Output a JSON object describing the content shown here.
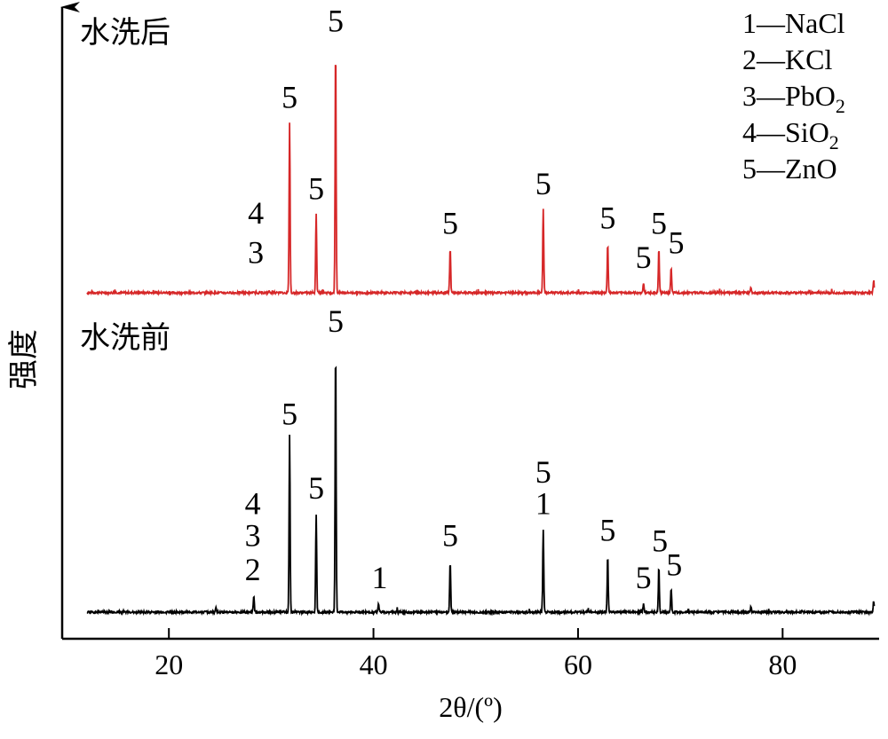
{
  "chart_data": {
    "type": "line",
    "xlabel": "2θ/(º)",
    "ylabel": "强度",
    "xlim": [
      10,
      89
    ],
    "xticks": [
      20,
      40,
      60,
      80
    ],
    "legend": {
      "placement": "top-right",
      "entries": [
        {
          "num": "1",
          "text": "NaCl"
        },
        {
          "num": "2",
          "text": "KCl"
        },
        {
          "num": "3",
          "text": "PbO",
          "sub": "2"
        },
        {
          "num": "4",
          "text": "SiO",
          "sub": "2"
        },
        {
          "num": "5",
          "text": "ZnO"
        }
      ]
    },
    "series": [
      {
        "name": "水洗后",
        "color": "#d62728",
        "peaks": [
          {
            "x": 31.8,
            "h": 0.69
          },
          {
            "x": 34.4,
            "h": 0.32
          },
          {
            "x": 36.3,
            "h": 1.0
          },
          {
            "x": 47.5,
            "h": 0.18
          },
          {
            "x": 56.6,
            "h": 0.34
          },
          {
            "x": 62.9,
            "h": 0.2
          },
          {
            "x": 66.4,
            "h": 0.04
          },
          {
            "x": 67.9,
            "h": 0.18
          },
          {
            "x": 69.1,
            "h": 0.1
          },
          {
            "x": 76.9,
            "h": 0.02
          },
          {
            "x": 88.9,
            "h": 0.05
          }
        ],
        "annotations": [
          {
            "x": 28.5,
            "label": "4",
            "level": 0.28
          },
          {
            "x": 28.5,
            "label": "3",
            "level": 0.12
          },
          {
            "x": 31.8,
            "label": "5",
            "level": 0.75
          },
          {
            "x": 34.4,
            "label": "5",
            "level": 0.38
          },
          {
            "x": 36.3,
            "label": "5",
            "level": 1.06
          },
          {
            "x": 47.5,
            "label": "5",
            "level": 0.24
          },
          {
            "x": 56.6,
            "label": "5",
            "level": 0.4
          },
          {
            "x": 62.9,
            "label": "5",
            "level": 0.26
          },
          {
            "x": 66.4,
            "label": "5",
            "level": 0.1
          },
          {
            "x": 67.9,
            "label": "5",
            "level": 0.24
          },
          {
            "x": 69.6,
            "label": "5",
            "level": 0.16
          }
        ]
      },
      {
        "name": "水洗前",
        "color": "#000000",
        "peaks": [
          {
            "x": 24.6,
            "h": 0.02
          },
          {
            "x": 28.3,
            "h": 0.06
          },
          {
            "x": 31.8,
            "h": 0.67
          },
          {
            "x": 34.4,
            "h": 0.37
          },
          {
            "x": 36.3,
            "h": 1.0
          },
          {
            "x": 40.5,
            "h": 0.03
          },
          {
            "x": 47.5,
            "h": 0.19
          },
          {
            "x": 56.6,
            "h": 0.31
          },
          {
            "x": 62.9,
            "h": 0.21
          },
          {
            "x": 66.4,
            "h": 0.03
          },
          {
            "x": 67.9,
            "h": 0.17
          },
          {
            "x": 69.1,
            "h": 0.09
          },
          {
            "x": 76.9,
            "h": 0.02
          },
          {
            "x": 88.9,
            "h": 0.04
          }
        ],
        "annotations": [
          {
            "x": 28.2,
            "label": "4",
            "level": 0.37
          },
          {
            "x": 28.2,
            "label": "3",
            "level": 0.25
          },
          {
            "x": 28.2,
            "label": "2",
            "level": 0.12
          },
          {
            "x": 31.8,
            "label": "5",
            "level": 0.71
          },
          {
            "x": 34.4,
            "label": "5",
            "level": 0.43
          },
          {
            "x": 36.3,
            "label": "5",
            "level": 1.06
          },
          {
            "x": 40.6,
            "label": "1",
            "level": 0.09
          },
          {
            "x": 47.5,
            "label": "5",
            "level": 0.25
          },
          {
            "x": 56.6,
            "label": "5",
            "level": 0.49
          },
          {
            "x": 56.6,
            "label": "1",
            "level": 0.37
          },
          {
            "x": 62.9,
            "label": "5",
            "level": 0.27
          },
          {
            "x": 66.4,
            "label": "5",
            "level": 0.09
          },
          {
            "x": 68.0,
            "label": "5",
            "level": 0.23
          },
          {
            "x": 69.4,
            "label": "5",
            "level": 0.14
          }
        ]
      }
    ]
  }
}
